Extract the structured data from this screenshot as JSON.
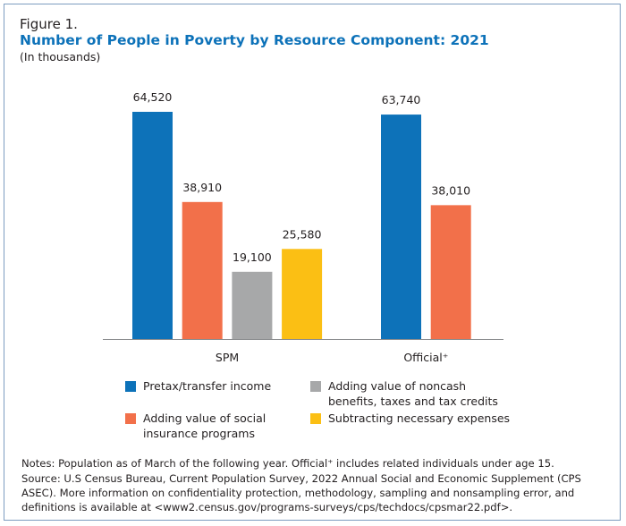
{
  "figure_label": "Figure 1.",
  "chart_data": {
    "type": "bar",
    "title": "Number of People in Poverty by Resource Component: 2021",
    "subtitle": "(In thousands)",
    "categories": [
      "SPM",
      "Official⁺"
    ],
    "series": [
      {
        "name": "Pretax/transfer income",
        "color": "#0d72b9",
        "values": [
          64520,
          63740
        ],
        "labels": [
          "64,520",
          "63,740"
        ]
      },
      {
        "name": "Adding value of social insurance programs",
        "color": "#f2704a",
        "values": [
          38910,
          38010
        ],
        "labels": [
          "38,910",
          "38,010"
        ]
      },
      {
        "name": "Adding value of noncash benefits, taxes and tax credits",
        "color": "#a7a8a9",
        "values": [
          19100,
          null
        ],
        "labels": [
          "19,100",
          null
        ]
      },
      {
        "name": "Subtracting necessary expenses",
        "color": "#fbbf14",
        "values": [
          25580,
          null
        ],
        "labels": [
          "25,580",
          null
        ]
      }
    ],
    "ylim": [
      0,
      80000
    ],
    "grid": false,
    "legend_position": "bottom"
  },
  "notes": "Notes: Population as of March of the following year. Official⁺ includes related individuals under age 15.",
  "source": "Source: U.S Census Bureau, Current Population Survey, 2022 Annual Social and Economic Supplement (CPS ASEC). More information on confidentiality protection, methodology, sampling and nonsampling error, and definitions is available at <www2.census.gov/programs-surveys/cps/techdocs/cpsmar22.pdf>."
}
